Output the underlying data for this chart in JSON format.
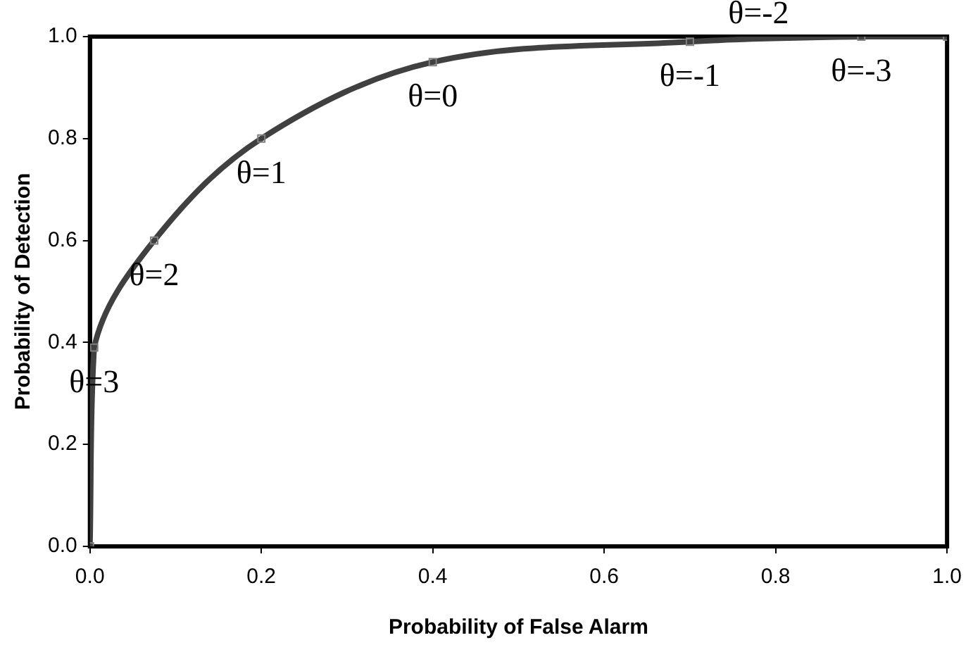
{
  "chart_data": {
    "type": "line",
    "xlabel": "Probability of False Alarm",
    "ylabel": "Probability of Detection",
    "x": [
      0,
      0.005,
      0.075,
      0.2,
      0.4,
      0.7,
      0.9,
      1.0
    ],
    "series": [
      {
        "color": "#404040",
        "values": [
          0,
          0.39,
          0.6,
          0.8,
          0.95,
          0.99,
          1.0,
          1.0
        ]
      }
    ],
    "xlim": [
      0,
      1
    ],
    "xticks": [
      {
        "value": 0,
        "label": "0.0"
      },
      0.2,
      0.4,
      0.6,
      0.8,
      {
        "value": 1,
        "label": "1.0"
      }
    ],
    "ylim": [
      0,
      1
    ],
    "yticks": [
      {
        "value": 0,
        "label": "0.0"
      },
      0.2,
      0.4,
      0.6,
      0.8,
      {
        "value": 1,
        "label": "1.0"
      }
    ],
    "grid": false,
    "legend": false,
    "marker": "square",
    "line_style": "solid",
    "annotations": [
      {
        "text": "θ=3",
        "x": 0.005,
        "y": 0.39
      },
      {
        "text": "θ=2",
        "x": 0.075,
        "y": 0.6
      },
      {
        "text": "θ=1",
        "x": 0.2,
        "y": 0.8
      },
      {
        "text": "θ=0",
        "x": 0.4,
        "y": 0.95
      },
      {
        "text": "θ=-1",
        "x": 0.7,
        "y": 0.99
      },
      {
        "text": "θ=-2",
        "x": 0.78,
        "y": 1.0
      },
      {
        "text": "θ=-3",
        "x": 0.9,
        "y": 1.0
      }
    ]
  }
}
